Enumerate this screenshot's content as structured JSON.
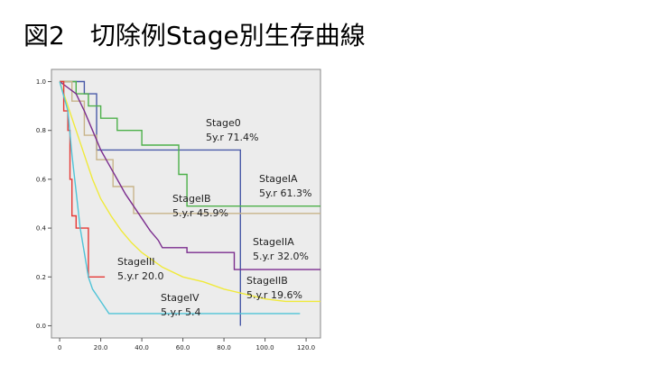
{
  "title": "図2　切除例Stage別生存曲線",
  "chart_data": {
    "type": "survival",
    "xlim": [
      -4,
      127
    ],
    "ylim": [
      -0.05,
      1.05
    ],
    "xticks": [
      0,
      {
        "value": 20,
        "label": "20.0"
      },
      {
        "value": 40,
        "label": "40.0"
      },
      {
        "value": 60,
        "label": "60.0"
      },
      {
        "value": 80,
        "label": "80.0"
      },
      {
        "value": 100,
        "label": "100.0"
      },
      {
        "value": 120,
        "label": "120.0"
      }
    ],
    "yticks": [
      {
        "value": 0,
        "label": "0.0"
      },
      {
        "value": 0.2,
        "label": "0.2"
      },
      {
        "value": 0.4,
        "label": "0.4"
      },
      {
        "value": 0.6,
        "label": "0.6"
      },
      {
        "value": 0.8,
        "label": "0.8"
      },
      {
        "value": 1,
        "label": "1.0"
      }
    ],
    "series": [
      {
        "color": "#4a5aa8",
        "x": [
          0,
          12,
          12,
          18,
          18,
          88,
          88
        ],
        "values": [
          1,
          1,
          0.95,
          0.95,
          0.72,
          0.72,
          0
        ]
      },
      {
        "color": "#4db04a",
        "x": [
          0,
          8,
          8,
          14,
          14,
          20,
          20,
          28,
          28,
          40,
          40,
          58,
          58,
          62,
          62,
          127
        ],
        "values": [
          1,
          1,
          0.95,
          0.95,
          0.9,
          0.9,
          0.85,
          0.85,
          0.8,
          0.8,
          0.74,
          0.74,
          0.62,
          0.62,
          0.49,
          0.49
        ]
      },
      {
        "color": "#c8b48a",
        "x": [
          0,
          6,
          6,
          12,
          12,
          18,
          18,
          26,
          26,
          36,
          36,
          127
        ],
        "values": [
          1,
          1,
          0.92,
          0.92,
          0.78,
          0.78,
          0.68,
          0.68,
          0.57,
          0.57,
          0.46,
          0.46
        ]
      },
      {
        "color": "#7b2d8e",
        "x": [
          0,
          8,
          12,
          16,
          20,
          24,
          28,
          32,
          36,
          40,
          44,
          48,
          50,
          62,
          62,
          85,
          85,
          127
        ],
        "values": [
          1,
          0.95,
          0.88,
          0.8,
          0.72,
          0.66,
          0.6,
          0.54,
          0.49,
          0.44,
          0.39,
          0.35,
          0.32,
          0.32,
          0.3,
          0.3,
          0.23,
          0.23
        ]
      },
      {
        "color": "#f0ea3a",
        "x": [
          0,
          4,
          8,
          12,
          16,
          20,
          25,
          30,
          35,
          40,
          50,
          60,
          70,
          80,
          90,
          100,
          110,
          127
        ],
        "values": [
          1,
          0.9,
          0.8,
          0.7,
          0.6,
          0.52,
          0.45,
          0.39,
          0.34,
          0.3,
          0.24,
          0.2,
          0.18,
          0.15,
          0.13,
          0.11,
          0.1,
          0.1
        ]
      },
      {
        "color": "#e53935",
        "x": [
          0,
          2,
          2,
          4,
          4,
          5,
          5,
          6,
          6,
          8,
          8,
          14,
          14,
          22
        ],
        "values": [
          1,
          1,
          0.88,
          0.88,
          0.8,
          0.8,
          0.6,
          0.6,
          0.45,
          0.45,
          0.4,
          0.4,
          0.2,
          0.2
        ]
      },
      {
        "color": "#4fc3d7",
        "x": [
          0,
          4,
          6,
          8,
          10,
          12,
          14,
          16,
          20,
          24,
          117
        ],
        "values": [
          1,
          0.88,
          0.7,
          0.55,
          0.4,
          0.3,
          0.2,
          0.15,
          0.1,
          0.05,
          0.05
        ]
      }
    ],
    "annotations": [
      {
        "label": "Stage0",
        "text": "5y.r 71.4%"
      },
      {
        "label": "StageIA",
        "text": "5y.r  61.3%"
      },
      {
        "label": "StageIB",
        "text": "5.y.r  45.9%"
      },
      {
        "label": "StageIIA",
        "text": "5.y.r  32.0%"
      },
      {
        "label": "StageIIB",
        "text": "5.y.r  19.6%"
      },
      {
        "label": "StageIII",
        "text": "5.y.r  20.0"
      },
      {
        "label": "StageIV",
        "text": "5.y.r  5.4"
      }
    ]
  }
}
